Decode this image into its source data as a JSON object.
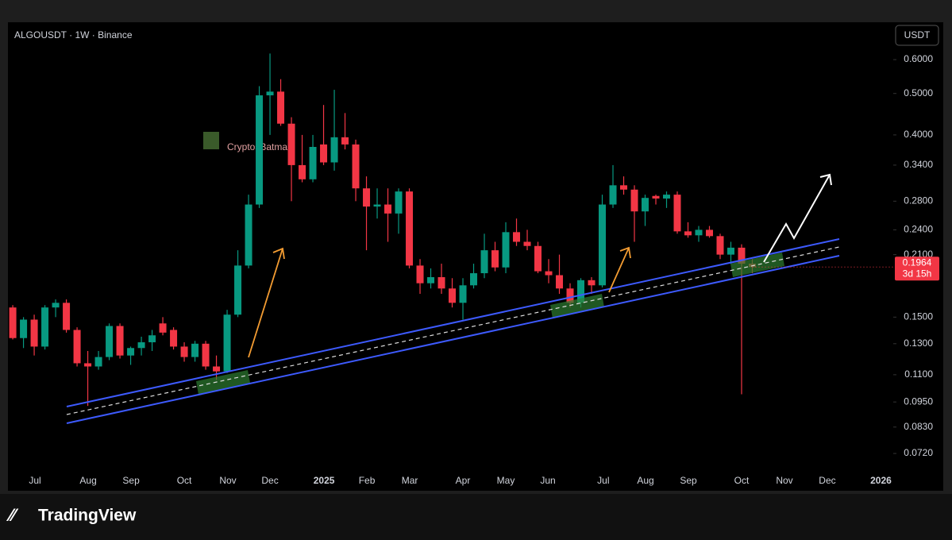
{
  "header": {
    "symbol": "ALGOUSDT · 1W · Binance",
    "currency_button": "USDT",
    "watermark": "CryptosBatman",
    "brand": "TradingView"
  },
  "chart_data": {
    "type": "candlestick",
    "log_scale": true,
    "up_color": "#089981",
    "down_color": "#f23645",
    "categories": [
      null,
      null,
      null,
      null,
      null,
      null,
      null,
      null,
      null,
      null,
      null,
      null,
      null,
      null,
      null,
      null,
      null,
      null,
      null,
      null,
      null,
      null,
      null,
      null,
      null,
      null,
      null,
      null,
      null,
      null,
      null,
      null,
      null,
      null,
      null,
      null,
      null,
      null,
      null,
      null,
      null,
      null,
      null,
      null,
      null,
      null,
      null,
      null,
      null,
      null,
      null,
      null,
      null,
      null,
      null,
      null,
      null,
      null,
      null,
      null,
      null,
      null,
      null,
      null,
      null,
      null,
      null,
      null,
      null,
      null
    ],
    "open": [
      0.158,
      0.134,
      0.148,
      0.128,
      0.158,
      0.162,
      0.14,
      0.117,
      0.115,
      0.121,
      0.143,
      0.122,
      0.127,
      0.131,
      0.145,
      0.14,
      0.128,
      0.121,
      0.13,
      0.115,
      0.112,
      0.152,
      0.198,
      0.275,
      0.495,
      0.505,
      0.425,
      0.34,
      0.315,
      0.38,
      0.345,
      0.395,
      0.38,
      0.3,
      0.272,
      0.275,
      0.262,
      0.295,
      0.198,
      0.18,
      0.186,
      0.175,
      0.162,
      0.178,
      0.19,
      0.215,
      0.196,
      0.237,
      0.225,
      0.22,
      0.192,
      0.188,
      0.175,
      0.162,
      0.183,
      0.178,
      0.275,
      0.305,
      0.298,
      0.265,
      0.288,
      0.284,
      0.29,
      0.238,
      0.233,
      0.24,
      0.232,
      0.21,
      0.218,
      0.2
    ],
    "high": [
      0.16,
      0.15,
      0.152,
      0.16,
      0.165,
      0.165,
      0.142,
      0.125,
      0.125,
      0.145,
      0.145,
      0.128,
      0.135,
      0.14,
      0.15,
      0.142,
      0.131,
      0.132,
      0.132,
      0.122,
      0.156,
      0.215,
      0.29,
      0.52,
      0.62,
      0.54,
      0.44,
      0.4,
      0.4,
      0.47,
      0.51,
      0.45,
      0.39,
      0.32,
      0.3,
      0.3,
      0.3,
      0.3,
      0.205,
      0.195,
      0.2,
      0.185,
      0.185,
      0.2,
      0.235,
      0.225,
      0.25,
      0.255,
      0.24,
      0.225,
      0.205,
      0.21,
      0.18,
      0.185,
      0.186,
      0.29,
      0.34,
      0.32,
      0.305,
      0.29,
      0.29,
      0.295,
      0.295,
      0.25,
      0.245,
      0.245,
      0.235,
      0.225,
      0.222,
      0.205
    ],
    "low": [
      0.133,
      0.127,
      0.122,
      0.126,
      0.15,
      0.138,
      0.115,
      0.093,
      0.113,
      0.119,
      0.12,
      0.116,
      0.122,
      0.125,
      0.136,
      0.126,
      0.118,
      0.118,
      0.113,
      0.107,
      0.111,
      0.15,
      0.195,
      0.27,
      0.4,
      0.42,
      0.28,
      0.31,
      0.31,
      0.34,
      0.33,
      0.37,
      0.28,
      0.215,
      0.255,
      0.225,
      0.235,
      0.195,
      0.17,
      0.175,
      0.17,
      0.158,
      0.148,
      0.175,
      0.185,
      0.192,
      0.19,
      0.22,
      0.215,
      0.19,
      0.18,
      0.17,
      0.158,
      0.158,
      0.17,
      0.176,
      0.27,
      0.29,
      0.225,
      0.245,
      0.275,
      0.27,
      0.235,
      0.23,
      0.225,
      0.23,
      0.205,
      0.2,
      0.099,
      0.19
    ],
    "close": [
      0.134,
      0.148,
      0.128,
      0.158,
      0.162,
      0.14,
      0.117,
      0.115,
      0.121,
      0.143,
      0.122,
      0.127,
      0.131,
      0.136,
      0.138,
      0.128,
      0.121,
      0.13,
      0.115,
      0.112,
      0.152,
      0.198,
      0.275,
      0.495,
      0.505,
      0.425,
      0.34,
      0.315,
      0.375,
      0.345,
      0.395,
      0.38,
      0.3,
      0.272,
      0.275,
      0.262,
      0.295,
      0.198,
      0.18,
      0.186,
      0.175,
      0.162,
      0.178,
      0.19,
      0.215,
      0.196,
      0.237,
      0.225,
      0.22,
      0.192,
      0.188,
      0.175,
      0.162,
      0.183,
      0.178,
      0.275,
      0.305,
      0.298,
      0.265,
      0.285,
      0.284,
      0.29,
      0.238,
      0.233,
      0.24,
      0.232,
      0.21,
      0.218,
      0.2,
      0.1964
    ],
    "xlim": [
      -0.45,
      82.15
    ],
    "xticks": [
      {
        "value": 2.07,
        "label": "Jul"
      },
      {
        "value": 7.04,
        "label": "Aug"
      },
      {
        "value": 11.04,
        "label": "Sep"
      },
      {
        "value": 16,
        "label": "Oct"
      },
      {
        "value": 20.07,
        "label": "Nov"
      },
      {
        "value": 24,
        "label": "Dec"
      },
      {
        "value": 29.04,
        "label": "2025"
      },
      {
        "value": 33.04,
        "label": "Feb"
      },
      {
        "value": 37.04,
        "label": "Mar"
      },
      {
        "value": 42,
        "label": "Apr"
      },
      {
        "value": 46,
        "label": "May"
      },
      {
        "value": 49.93,
        "label": "Jun"
      },
      {
        "value": 55.1,
        "label": "Jul"
      },
      {
        "value": 59.04,
        "label": "Aug"
      },
      {
        "value": 63.04,
        "label": "Sep"
      },
      {
        "value": 68,
        "label": "Oct"
      },
      {
        "value": 72,
        "label": "Nov"
      },
      {
        "value": 76,
        "label": "Dec"
      },
      {
        "value": 81,
        "label": "2026"
      }
    ],
    "ylim": [
      0.0589,
      0.7337
    ],
    "yticks": [
      {
        "value": 0.6,
        "label": "0.6000"
      },
      {
        "value": 0.5,
        "label": "0.5000"
      },
      {
        "value": 0.4,
        "label": "0.4000"
      },
      {
        "value": 0.34,
        "label": "0.3400"
      },
      {
        "value": 0.28,
        "label": "0.2800"
      },
      {
        "value": 0.24,
        "label": "0.2400"
      },
      {
        "value": 0.21,
        "label": "0.2100"
      },
      {
        "value": 0.15,
        "label": "0.1500"
      },
      {
        "value": 0.13,
        "label": "0.1300"
      },
      {
        "value": 0.11,
        "label": "0.1100"
      },
      {
        "value": 0.095,
        "label": "0.0950"
      },
      {
        "value": 0.083,
        "label": "0.0830"
      },
      {
        "value": 0.072,
        "label": "0.0720"
      }
    ],
    "current_price": {
      "value": 0.1964,
      "label": "0.1964"
    },
    "countdown": "3d 15h"
  }
}
